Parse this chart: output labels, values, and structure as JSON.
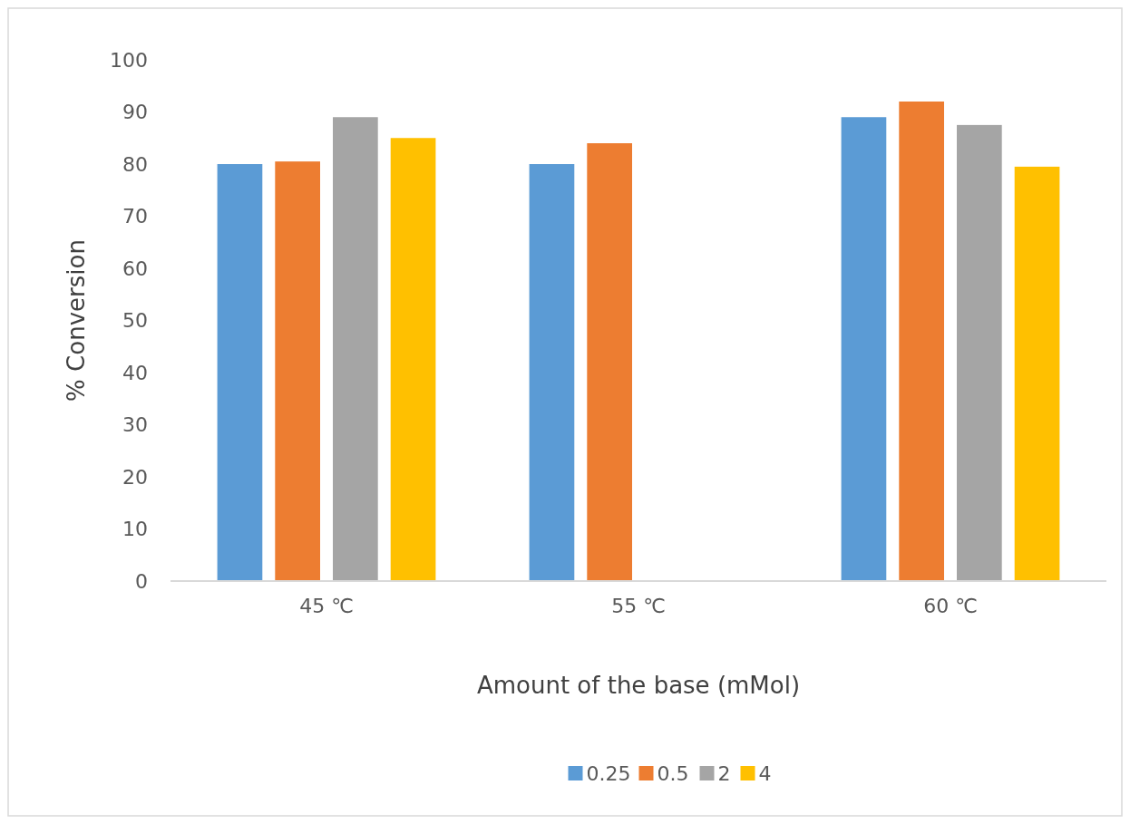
{
  "chart_data": {
    "type": "bar",
    "xlabel": "Amount of the base (mMol)",
    "ylabel": "% Conversion",
    "categories": [
      "45 ℃",
      "55 ℃",
      "60 ℃"
    ],
    "series": [
      {
        "name": "0.25",
        "color": "#5b9bd5",
        "values": [
          80,
          80,
          89
        ]
      },
      {
        "name": "0.5",
        "color": "#ed7d31",
        "values": [
          80.5,
          84,
          92
        ]
      },
      {
        "name": "2",
        "color": "#a5a5a5",
        "values": [
          89,
          null,
          87.5
        ]
      },
      {
        "name": "4",
        "color": "#ffc000",
        "values": [
          85,
          null,
          79.5
        ]
      }
    ],
    "ylim": [
      0,
      100
    ],
    "yticks": [
      0,
      10,
      20,
      30,
      40,
      50,
      60,
      70,
      80,
      90,
      100
    ],
    "grid": false,
    "legend": "bottom"
  }
}
